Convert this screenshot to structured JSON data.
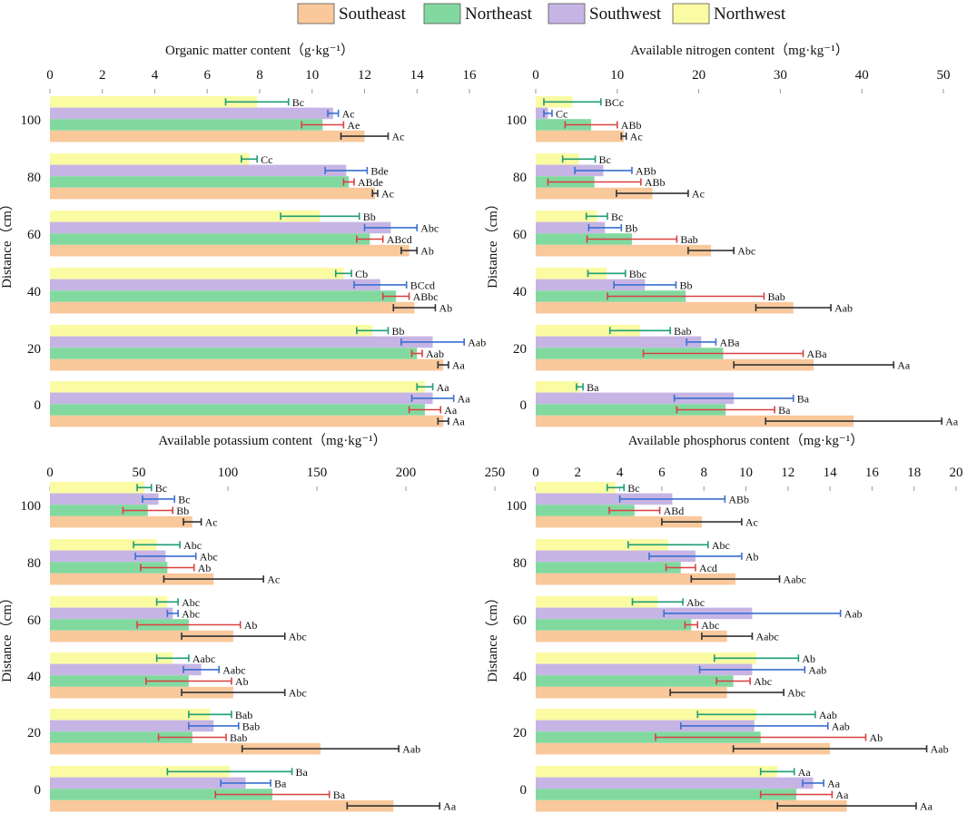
{
  "colors": {
    "Southeast": "#f9c89b",
    "Northeast": "#82d9a0",
    "Southwest": "#c6b5e4",
    "Northwest": "#fbfba4",
    "err_Southeast": "#333333",
    "err_Northeast": "#d94040",
    "err_Southwest": "#3a6fd0",
    "err_Northwest": "#1d9e74"
  },
  "legend": [
    "Southeast",
    "Northeast",
    "Southwest",
    "Northwest"
  ],
  "chart_data": [
    {
      "type": "bar",
      "orientation": "horizontal",
      "title": "Organic matter content（g·kg⁻¹）",
      "xlabel": "Organic matter content（g·kg⁻¹）",
      "ylabel": "Distance（cm）",
      "xlim": [
        0,
        16
      ],
      "xticks": [
        "0",
        "2",
        "4",
        "6",
        "8",
        "10",
        "12",
        "14",
        "16"
      ],
      "categories": [
        "100",
        "80",
        "60",
        "40",
        "20",
        "0"
      ],
      "series": [
        {
          "name": "Northwest",
          "values": [
            7.9,
            7.6,
            10.3,
            11.2,
            12.3,
            14.3
          ],
          "errors": [
            1.2,
            0.3,
            1.5,
            0.3,
            0.6,
            0.3
          ],
          "labels": [
            "Bc",
            "Cc",
            "Bb",
            "Cb",
            "Bb",
            "Aa"
          ]
        },
        {
          "name": "Southwest",
          "values": [
            10.8,
            11.3,
            13.0,
            12.6,
            14.6,
            14.6
          ],
          "errors": [
            0.2,
            0.8,
            1.0,
            1.0,
            1.2,
            0.8
          ],
          "labels": [
            "Ac",
            "Bde",
            "Abc",
            "BCcd",
            "Aab",
            "Aa"
          ]
        },
        {
          "name": "Northeast",
          "values": [
            10.4,
            11.4,
            12.2,
            13.2,
            14.0,
            14.3
          ],
          "errors": [
            0.8,
            0.2,
            0.5,
            0.5,
            0.2,
            0.6
          ],
          "labels": [
            "Ae",
            "ABde",
            "ABcd",
            "ABbc",
            "Aab",
            "Aa"
          ]
        },
        {
          "name": "Southeast",
          "values": [
            12.0,
            12.4,
            13.7,
            13.9,
            15.0,
            15.0
          ],
          "errors": [
            0.9,
            0.1,
            0.3,
            0.8,
            0.2,
            0.2
          ],
          "labels": [
            "Ac",
            "Ac",
            "Ab",
            "Ab",
            "Aa",
            "Aa"
          ]
        }
      ]
    },
    {
      "type": "bar",
      "orientation": "horizontal",
      "title": "Available nitrogen content（mg·kg⁻¹）",
      "xlabel": "Available nitrogen content（mg·kg⁻¹）",
      "ylabel": "Distance（cm）",
      "xlim": [
        0,
        50
      ],
      "xticks": [
        "0",
        "10",
        "20",
        "30",
        "40",
        "50"
      ],
      "categories": [
        "100",
        "80",
        "60",
        "40",
        "20",
        "0"
      ],
      "series": [
        {
          "name": "Northwest",
          "values": [
            4.5,
            5.3,
            7.5,
            8.7,
            12.8,
            5.4
          ],
          "errors": [
            3.5,
            2.0,
            1.3,
            2.3,
            3.7,
            0.4
          ],
          "labels": [
            "BCc",
            "Bc",
            "Bc",
            "Bbc",
            "Bab",
            "Ba"
          ]
        },
        {
          "name": "Southwest",
          "values": [
            1.5,
            8.3,
            8.5,
            13.4,
            20.3,
            24.3
          ],
          "errors": [
            0.5,
            3.5,
            2.0,
            3.8,
            1.8,
            7.3
          ],
          "labels": [
            "Cc",
            "ABb",
            "Bb",
            "Bb",
            "ABa",
            "Ba"
          ]
        },
        {
          "name": "Northeast",
          "values": [
            6.8,
            7.2,
            11.8,
            18.4,
            23.0,
            23.3
          ],
          "errors": [
            3.2,
            5.7,
            5.5,
            9.6,
            9.8,
            6.0
          ],
          "labels": [
            "ABb",
            "ABb",
            "Bab",
            "Bab",
            "ABa",
            "Ba"
          ]
        },
        {
          "name": "Southeast",
          "values": [
            10.8,
            14.3,
            21.5,
            31.6,
            34.1,
            39.0
          ],
          "errors": [
            0.3,
            4.4,
            2.8,
            4.6,
            9.8,
            10.8
          ],
          "labels": [
            "Ac",
            "Ac",
            "Abc",
            "Aab",
            "Aa",
            "Aa"
          ]
        }
      ]
    },
    {
      "type": "bar",
      "orientation": "horizontal",
      "title": "Available potassium content（mg·kg⁻¹）",
      "xlabel": "Available potassium content（mg·kg⁻¹）",
      "ylabel": "Distance（cm）",
      "xlim": [
        0,
        250
      ],
      "xticks": [
        "0",
        "50",
        "100",
        "150",
        "200",
        "250"
      ],
      "categories": [
        "100",
        "80",
        "60",
        "40",
        "20",
        "0"
      ],
      "series": [
        {
          "name": "Northwest",
          "values": [
            53,
            60,
            66,
            69,
            90,
            101
          ],
          "errors": [
            4,
            13,
            6,
            9,
            12,
            35
          ],
          "labels": [
            "Bc",
            "Abc",
            "Abc",
            "Aabc",
            "Bab",
            "Ba"
          ]
        },
        {
          "name": "Southwest",
          "values": [
            61,
            65,
            69,
            85,
            92,
            110
          ],
          "errors": [
            9,
            17,
            3,
            10,
            14,
            14
          ],
          "labels": [
            "Bc",
            "Abc",
            "Abc",
            "Aabc",
            "Bab",
            "Ba"
          ]
        },
        {
          "name": "Northeast",
          "values": [
            55,
            66,
            78,
            78,
            80,
            125
          ],
          "errors": [
            14,
            15,
            29,
            24,
            19,
            32
          ],
          "labels": [
            "Bb",
            "Ab",
            "Ab",
            "Ab",
            "Bab",
            "Ba"
          ]
        },
        {
          "name": "Southeast",
          "values": [
            80,
            92,
            103,
            103,
            152,
            193
          ],
          "errors": [
            5,
            28,
            29,
            29,
            44,
            26
          ],
          "labels": [
            "Ac",
            "Ac",
            "Abc",
            "Abc",
            "Aab",
            "Aa"
          ]
        }
      ]
    },
    {
      "type": "bar",
      "orientation": "horizontal",
      "title": "Available phosphorus content（mg·kg⁻¹）",
      "xlabel": "Available phosphorus content（mg·kg⁻¹）",
      "ylabel": "Distance（cm）",
      "xlim": [
        0,
        20
      ],
      "xticks": [
        "0",
        "2",
        "4",
        "6",
        "8",
        "10",
        "12",
        "14",
        "16",
        "18",
        "20"
      ],
      "categories": [
        "100",
        "80",
        "60",
        "40",
        "20",
        "0"
      ],
      "series": [
        {
          "name": "Northwest",
          "values": [
            3.8,
            6.3,
            5.8,
            10.5,
            10.5,
            11.5
          ],
          "errors": [
            0.4,
            1.9,
            1.2,
            2.0,
            2.8,
            0.8
          ],
          "labels": [
            "Bc",
            "Abc",
            "Abc",
            "Ab",
            "Aab",
            "Aa"
          ]
        },
        {
          "name": "Southwest",
          "values": [
            6.5,
            7.6,
            10.3,
            10.3,
            10.4,
            13.2
          ],
          "errors": [
            2.5,
            2.2,
            4.2,
            2.5,
            3.5,
            0.5
          ],
          "labels": [
            "ABb",
            "Ab",
            "Aab",
            "Aab",
            "Aab",
            "Aa"
          ]
        },
        {
          "name": "Northeast",
          "values": [
            4.7,
            6.9,
            7.4,
            9.4,
            10.7,
            12.4
          ],
          "errors": [
            1.2,
            0.7,
            0.3,
            0.8,
            5.0,
            1.7
          ],
          "labels": [
            "ABd",
            "Acd",
            "Abc",
            "Abc",
            "Ab",
            "Aa"
          ]
        },
        {
          "name": "Southeast",
          "values": [
            7.9,
            9.5,
            9.1,
            9.1,
            14.0,
            14.8
          ],
          "errors": [
            1.9,
            2.1,
            1.2,
            2.7,
            4.6,
            3.3
          ],
          "labels": [
            "Ac",
            "Aabc",
            "Aabc",
            "Abc",
            "Aab",
            "Aa"
          ]
        }
      ]
    }
  ]
}
